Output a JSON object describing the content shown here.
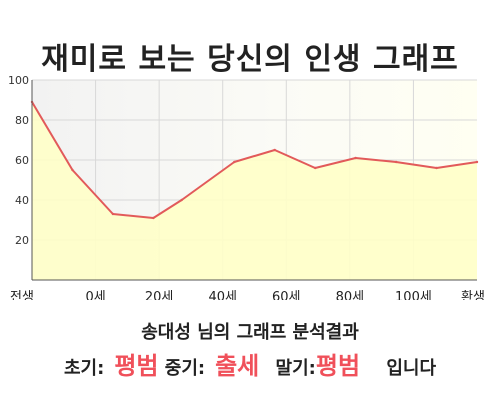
{
  "page_title": "재미로 보는 당신의 인생 그래프",
  "summary": {
    "name": "송대성",
    "suffix": " 님의 그래프 분석결과"
  },
  "results": {
    "early_label": "초기:",
    "early_value": "평범",
    "mid_label": "중기:",
    "mid_value": "출세",
    "late_label": "말기:",
    "late_value": "평범",
    "ending": "입니다"
  },
  "chart_data": {
    "type": "area",
    "x": [
      0,
      10,
      20,
      30,
      37,
      50,
      60,
      70,
      80,
      90,
      100,
      110
    ],
    "y": [
      89,
      55,
      33,
      31,
      40,
      59,
      65,
      56,
      61,
      59,
      56,
      59
    ],
    "categories": [
      "전생",
      "0세",
      "20세",
      "40세",
      "60세",
      "80세",
      "100세",
      "환생"
    ],
    "yticks": [
      "20",
      "40",
      "60",
      "80",
      "100"
    ],
    "ylim": [
      0,
      100
    ],
    "line_color": "#e25a5a",
    "fill_color": "#ffffc8",
    "grid": true
  }
}
